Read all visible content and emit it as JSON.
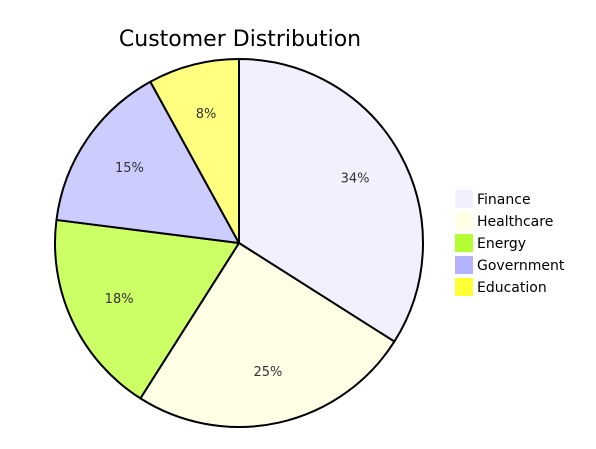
{
  "chart_data": {
    "type": "pie",
    "title": "Customer Distribution",
    "slices": [
      {
        "label": "Finance",
        "value": 34,
        "display": "34%",
        "color": "#f0f0ff"
      },
      {
        "label": "Healthcare",
        "value": 25,
        "display": "25%",
        "color": "#ffffe6"
      },
      {
        "label": "Energy",
        "value": 18,
        "display": "18%",
        "color": "#ccff66"
      },
      {
        "label": "Government",
        "value": 15,
        "display": "15%",
        "color": "#ccccff"
      },
      {
        "label": "Education",
        "value": 8,
        "display": "8%",
        "color": "#ffff80"
      }
    ],
    "start_angle": "12 o'clock",
    "direction": "clockwise",
    "legend_position": "right",
    "legend_colors": [
      "#f0f0ff",
      "#ffffe6",
      "#b3ff33",
      "#b3b3ff",
      "#ffff33"
    ]
  }
}
